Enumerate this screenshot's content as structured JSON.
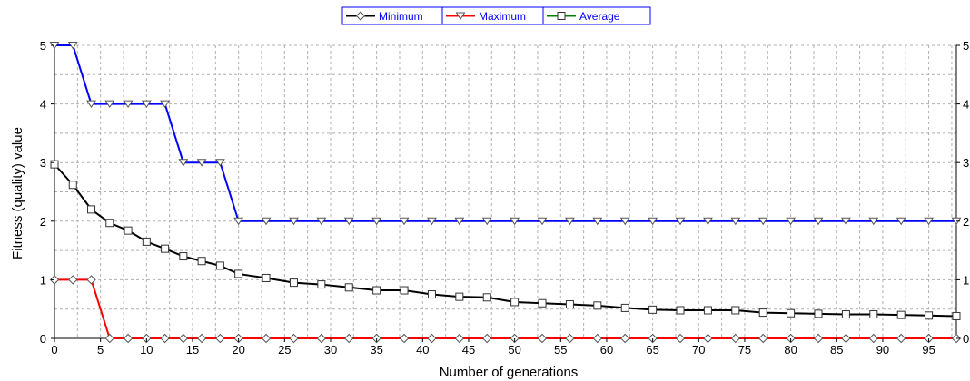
{
  "chart_data": {
    "type": "line",
    "xlabel": "Number of generations",
    "ylabel": "Fitness (quality) value",
    "xlim": [
      0,
      98
    ],
    "ylim": [
      0,
      5
    ],
    "x_ticks": [
      "0",
      "5",
      "10",
      "15",
      "20",
      "25",
      "30",
      "35",
      "40",
      "45",
      "50",
      "55",
      "60",
      "65",
      "70",
      "75",
      "80",
      "85",
      "90",
      "95"
    ],
    "y_ticks": [
      "0",
      "1",
      "2",
      "3",
      "4",
      "5"
    ],
    "y_ticks_right": [
      "0",
      "1",
      "2",
      "3",
      "4",
      "5"
    ],
    "grid": true,
    "legend_position": "top-center",
    "series": [
      {
        "name": "Minimum",
        "color": "#ff0000",
        "marker": "diamond",
        "x": [
          0,
          2,
          4,
          6,
          8,
          10,
          12,
          14,
          16,
          18,
          20,
          23,
          26,
          29,
          32,
          35,
          38,
          41,
          44,
          47,
          50,
          53,
          56,
          59,
          62,
          65,
          68,
          71,
          74,
          77,
          80,
          83,
          86,
          89,
          92,
          95,
          98
        ],
        "y": [
          1,
          1,
          1,
          0,
          0,
          0,
          0,
          0,
          0,
          0,
          0,
          0,
          0,
          0,
          0,
          0,
          0,
          0,
          0,
          0,
          0,
          0,
          0,
          0,
          0,
          0,
          0,
          0,
          0,
          0,
          0,
          0,
          0,
          0,
          0,
          0,
          0
        ]
      },
      {
        "name": "Maximum",
        "color": "#0000ff",
        "marker": "triangle-down",
        "x": [
          0,
          2,
          4,
          6,
          8,
          10,
          12,
          14,
          16,
          18,
          20,
          23,
          26,
          29,
          32,
          35,
          38,
          41,
          44,
          47,
          50,
          53,
          56,
          59,
          62,
          65,
          68,
          71,
          74,
          77,
          80,
          83,
          86,
          89,
          92,
          95,
          98
        ],
        "y": [
          5,
          5,
          4,
          4,
          4,
          4,
          4,
          3,
          3,
          3,
          2,
          2,
          2,
          2,
          2,
          2,
          2,
          2,
          2,
          2,
          2,
          2,
          2,
          2,
          2,
          2,
          2,
          2,
          2,
          2,
          2,
          2,
          2,
          2,
          2,
          2,
          2
        ]
      },
      {
        "name": "Average",
        "color": "#000000",
        "marker": "square",
        "x": [
          0,
          2,
          4,
          6,
          8,
          10,
          12,
          14,
          16,
          18,
          20,
          23,
          26,
          29,
          32,
          35,
          38,
          41,
          44,
          47,
          50,
          53,
          56,
          59,
          62,
          65,
          68,
          71,
          74,
          77,
          80,
          83,
          86,
          89,
          92,
          95,
          98
        ],
        "y": [
          2.97,
          2.62,
          2.2,
          1.97,
          1.84,
          1.65,
          1.53,
          1.4,
          1.32,
          1.24,
          1.1,
          1.03,
          0.95,
          0.92,
          0.87,
          0.82,
          0.82,
          0.75,
          0.71,
          0.7,
          0.62,
          0.6,
          0.58,
          0.56,
          0.52,
          0.49,
          0.48,
          0.48,
          0.48,
          0.44,
          0.43,
          0.42,
          0.41,
          0.41,
          0.4,
          0.39,
          0.38
        ]
      }
    ],
    "legend_order": [
      "Minimum",
      "Maximum",
      "Average"
    ],
    "legend_line_colors": {
      "Minimum": "#000000",
      "Maximum": "#ff0000",
      "Average": "#008000"
    }
  }
}
